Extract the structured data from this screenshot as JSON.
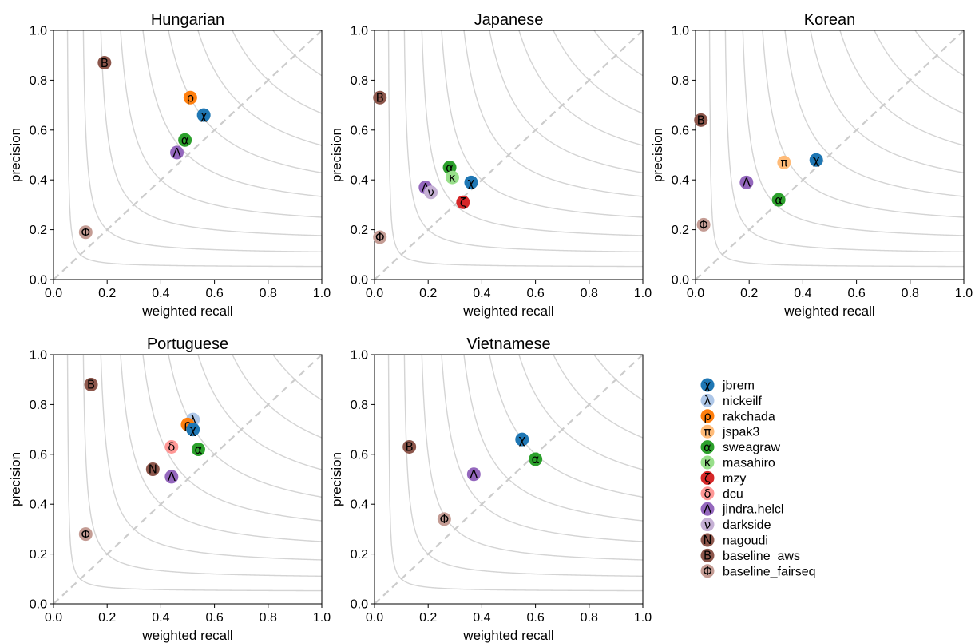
{
  "chart_data": {
    "type": "scatter",
    "xlabel": "weighted recall",
    "ylabel": "precision",
    "xlim": [
      0,
      1
    ],
    "ylim": [
      0,
      1
    ],
    "xticks": [
      "0.0",
      "0.2",
      "0.4",
      "0.6",
      "0.8",
      "1.0"
    ],
    "yticks": [
      "0.0",
      "0.2",
      "0.4",
      "0.6",
      "0.8",
      "1.0"
    ],
    "iso_f_levels": [
      0.1,
      0.2,
      0.3,
      0.4,
      0.5,
      0.6,
      0.7,
      0.8,
      0.9
    ],
    "diagonal": true,
    "legend_position": "right",
    "systems": [
      {
        "name": "jbrem",
        "symbol": "χ",
        "color": "#1f77b4"
      },
      {
        "name": "nickeilf",
        "symbol": "λ",
        "color": "#aec7e8"
      },
      {
        "name": "rakchada",
        "symbol": "ρ",
        "color": "#ff7f0e"
      },
      {
        "name": "jspak3",
        "symbol": "π",
        "color": "#ffbb78"
      },
      {
        "name": "sweagraw",
        "symbol": "α",
        "color": "#2ca02c"
      },
      {
        "name": "masahiro",
        "symbol": "κ",
        "color": "#98df8a"
      },
      {
        "name": "mzy",
        "symbol": "ζ",
        "color": "#d62728"
      },
      {
        "name": "dcu",
        "symbol": "δ",
        "color": "#ff9896"
      },
      {
        "name": "jindra.helcl",
        "symbol": "Λ",
        "color": "#9467bd"
      },
      {
        "name": "darkside",
        "symbol": "ν",
        "color": "#c5b0d5"
      },
      {
        "name": "nagoudi",
        "symbol": "N",
        "color": "#8c564b"
      },
      {
        "name": "baseline_aws",
        "symbol": "B",
        "color": "#8c564b"
      },
      {
        "name": "baseline_fairseq",
        "symbol": "Φ",
        "color": "#c49c94"
      }
    ],
    "panels": [
      {
        "title": "Hungarian",
        "points": [
          {
            "system": "baseline_aws",
            "x": 0.19,
            "y": 0.87
          },
          {
            "system": "rakchada",
            "x": 0.51,
            "y": 0.73
          },
          {
            "system": "jbrem",
            "x": 0.56,
            "y": 0.66
          },
          {
            "system": "sweagraw",
            "x": 0.49,
            "y": 0.56
          },
          {
            "system": "jindra.helcl",
            "x": 0.46,
            "y": 0.51
          },
          {
            "system": "baseline_fairseq",
            "x": 0.12,
            "y": 0.19
          }
        ]
      },
      {
        "title": "Japanese",
        "points": [
          {
            "system": "baseline_aws",
            "x": 0.02,
            "y": 0.73
          },
          {
            "system": "sweagraw",
            "x": 0.28,
            "y": 0.45
          },
          {
            "system": "masahiro",
            "x": 0.29,
            "y": 0.41
          },
          {
            "system": "jbrem",
            "x": 0.36,
            "y": 0.39
          },
          {
            "system": "jindra.helcl",
            "x": 0.19,
            "y": 0.37
          },
          {
            "system": "darkside",
            "x": 0.21,
            "y": 0.35
          },
          {
            "system": "mzy",
            "x": 0.33,
            "y": 0.31
          },
          {
            "system": "baseline_fairseq",
            "x": 0.02,
            "y": 0.17
          }
        ]
      },
      {
        "title": "Korean",
        "points": [
          {
            "system": "baseline_aws",
            "x": 0.02,
            "y": 0.64
          },
          {
            "system": "jbrem",
            "x": 0.45,
            "y": 0.48
          },
          {
            "system": "jspak3",
            "x": 0.33,
            "y": 0.47
          },
          {
            "system": "jindra.helcl",
            "x": 0.19,
            "y": 0.39
          },
          {
            "system": "sweagraw",
            "x": 0.31,
            "y": 0.32
          },
          {
            "system": "baseline_fairseq",
            "x": 0.03,
            "y": 0.22
          }
        ]
      },
      {
        "title": "Portuguese",
        "points": [
          {
            "system": "baseline_aws",
            "x": 0.14,
            "y": 0.88
          },
          {
            "system": "nickeilf",
            "x": 0.52,
            "y": 0.74
          },
          {
            "system": "rakchada",
            "x": 0.5,
            "y": 0.72
          },
          {
            "system": "jbrem",
            "x": 0.52,
            "y": 0.7
          },
          {
            "system": "dcu",
            "x": 0.44,
            "y": 0.63
          },
          {
            "system": "sweagraw",
            "x": 0.54,
            "y": 0.62
          },
          {
            "system": "nagoudi",
            "x": 0.37,
            "y": 0.54
          },
          {
            "system": "jindra.helcl",
            "x": 0.44,
            "y": 0.51
          },
          {
            "system": "baseline_fairseq",
            "x": 0.12,
            "y": 0.28
          }
        ]
      },
      {
        "title": "Vietnamese",
        "points": [
          {
            "system": "baseline_aws",
            "x": 0.13,
            "y": 0.63
          },
          {
            "system": "jbrem",
            "x": 0.55,
            "y": 0.66
          },
          {
            "system": "sweagraw",
            "x": 0.6,
            "y": 0.58
          },
          {
            "system": "jindra.helcl",
            "x": 0.37,
            "y": 0.52
          },
          {
            "system": "baseline_fairseq",
            "x": 0.26,
            "y": 0.34
          }
        ]
      }
    ]
  }
}
